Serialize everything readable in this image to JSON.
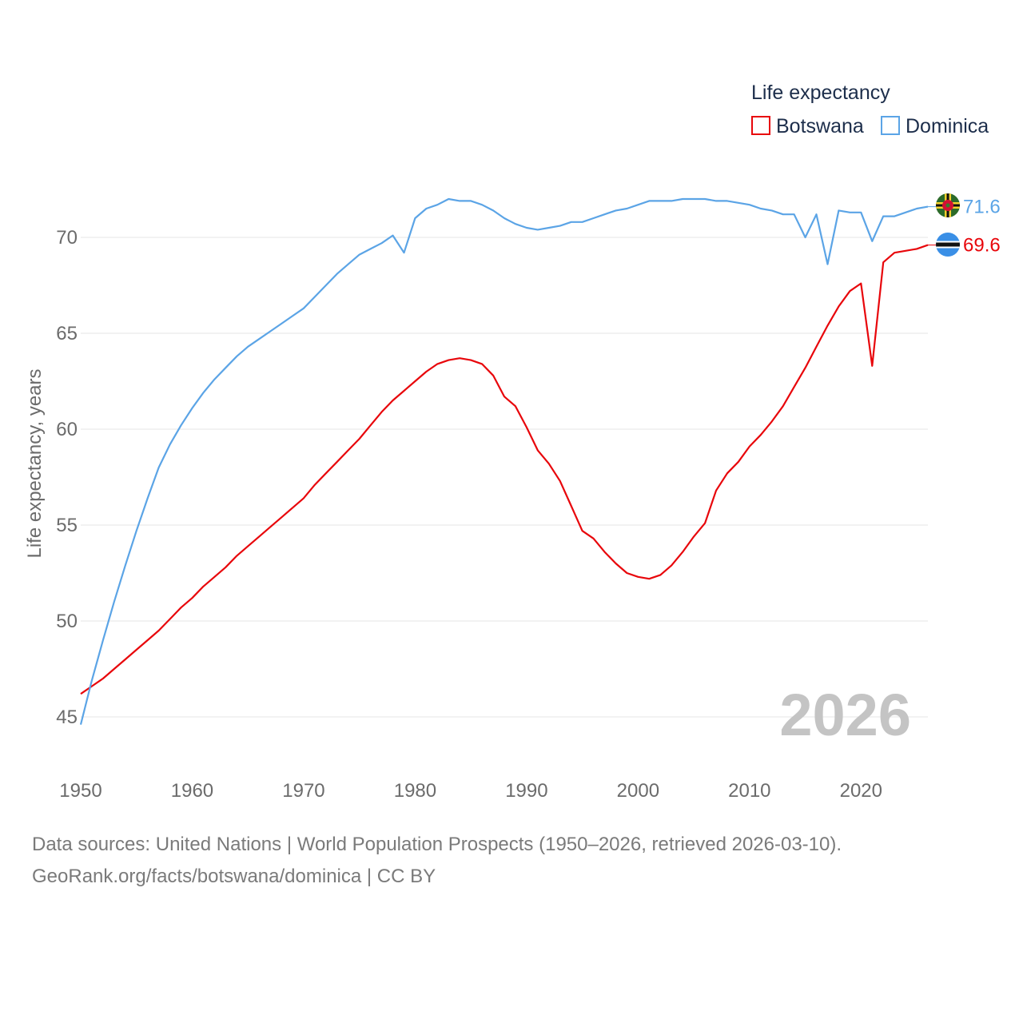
{
  "chart_data": {
    "type": "line",
    "legend_title": "Life expectancy",
    "ylabel": "Life expectancy, years",
    "xlabel": "",
    "xlim": [
      1950,
      2026
    ],
    "ylim": [
      44,
      73.5
    ],
    "x_ticks": [
      1950,
      1960,
      1970,
      1980,
      1990,
      2000,
      2010,
      2020
    ],
    "y_ticks": [
      45,
      50,
      55,
      60,
      65,
      70
    ],
    "year_label": "2026",
    "legend_position": "top-right",
    "series": [
      {
        "name": "Botswana",
        "color": "#e8060b",
        "end_label": "69.6",
        "x": [
          1950,
          1951,
          1952,
          1953,
          1954,
          1955,
          1956,
          1957,
          1958,
          1959,
          1960,
          1961,
          1962,
          1963,
          1964,
          1965,
          1966,
          1967,
          1968,
          1969,
          1970,
          1971,
          1972,
          1973,
          1974,
          1975,
          1976,
          1977,
          1978,
          1979,
          1980,
          1981,
          1982,
          1983,
          1984,
          1985,
          1986,
          1987,
          1988,
          1989,
          1990,
          1991,
          1992,
          1993,
          1994,
          1995,
          1996,
          1997,
          1998,
          1999,
          2000,
          2001,
          2002,
          2003,
          2004,
          2005,
          2006,
          2007,
          2008,
          2009,
          2010,
          2011,
          2012,
          2013,
          2014,
          2015,
          2016,
          2017,
          2018,
          2019,
          2020,
          2021,
          2022,
          2023,
          2024,
          2025,
          2026
        ],
        "values": [
          46.2,
          46.6,
          47.0,
          47.5,
          48.0,
          48.5,
          49.0,
          49.5,
          50.1,
          50.7,
          51.2,
          51.8,
          52.3,
          52.8,
          53.4,
          53.9,
          54.4,
          54.9,
          55.4,
          55.9,
          56.4,
          57.1,
          57.7,
          58.3,
          58.9,
          59.5,
          60.2,
          60.9,
          61.5,
          62.0,
          62.5,
          63.0,
          63.4,
          63.6,
          63.7,
          63.6,
          63.4,
          62.8,
          61.7,
          61.2,
          60.1,
          58.9,
          58.2,
          57.3,
          56.0,
          54.7,
          54.3,
          53.6,
          53.0,
          52.5,
          52.3,
          52.2,
          52.4,
          52.9,
          53.6,
          54.4,
          55.1,
          56.8,
          57.7,
          58.3,
          59.1,
          59.7,
          60.4,
          61.2,
          62.2,
          63.2,
          64.3,
          65.4,
          66.4,
          67.2,
          67.6,
          63.3,
          68.7,
          69.2,
          69.3,
          69.4,
          69.6
        ]
      },
      {
        "name": "Dominica",
        "color": "#5ba4e6",
        "end_label": "71.6",
        "x": [
          1950,
          1951,
          1952,
          1953,
          1954,
          1955,
          1956,
          1957,
          1958,
          1959,
          1960,
          1961,
          1962,
          1963,
          1964,
          1965,
          1966,
          1967,
          1968,
          1969,
          1970,
          1971,
          1972,
          1973,
          1974,
          1975,
          1976,
          1977,
          1978,
          1979,
          1980,
          1981,
          1982,
          1983,
          1984,
          1985,
          1986,
          1987,
          1988,
          1989,
          1990,
          1991,
          1992,
          1993,
          1994,
          1995,
          1996,
          1997,
          1998,
          1999,
          2000,
          2001,
          2002,
          2003,
          2004,
          2005,
          2006,
          2007,
          2008,
          2009,
          2010,
          2011,
          2012,
          2013,
          2014,
          2015,
          2016,
          2017,
          2018,
          2019,
          2020,
          2021,
          2022,
          2023,
          2024,
          2025,
          2026
        ],
        "values": [
          44.6,
          46.9,
          49.0,
          51.0,
          52.9,
          54.7,
          56.4,
          58.0,
          59.2,
          60.2,
          61.1,
          61.9,
          62.6,
          63.2,
          63.8,
          64.3,
          64.7,
          65.1,
          65.5,
          65.9,
          66.3,
          66.9,
          67.5,
          68.1,
          68.6,
          69.1,
          69.4,
          69.7,
          70.1,
          69.2,
          71.0,
          71.5,
          71.7,
          72.0,
          71.9,
          71.9,
          71.7,
          71.4,
          71.0,
          70.7,
          70.5,
          70.4,
          70.5,
          70.6,
          70.8,
          70.8,
          71.0,
          71.2,
          71.4,
          71.5,
          71.7,
          71.9,
          71.9,
          71.9,
          72.0,
          72.0,
          72.0,
          71.9,
          71.9,
          71.8,
          71.7,
          71.5,
          71.4,
          71.2,
          71.2,
          70.0,
          71.2,
          68.6,
          71.4,
          71.3,
          71.3,
          69.8,
          71.1,
          71.1,
          71.3,
          71.5,
          71.6
        ]
      }
    ]
  },
  "footer": {
    "source_line": "Data sources: United Nations | World Population Prospects (1950–2026, retrieved 2026-03-10).",
    "credit_line": "GeoRank.org/facts/botswana/dominica | CC BY"
  }
}
